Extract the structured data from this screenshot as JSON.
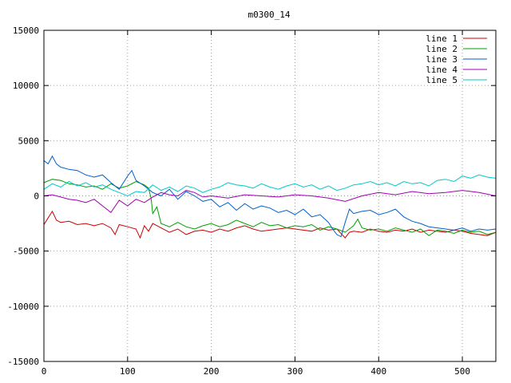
{
  "chart_data": {
    "type": "line",
    "title": "m0300_14",
    "xlabel": "",
    "ylabel": "",
    "xlim": [
      0,
      540
    ],
    "ylim": [
      -15000,
      15000
    ],
    "xticks": [
      0,
      100,
      200,
      300,
      400,
      500
    ],
    "yticks": [
      -15000,
      -10000,
      -5000,
      0,
      5000,
      10000,
      15000
    ],
    "grid": true,
    "legend_position": "top-right",
    "series": [
      {
        "name": "line 1",
        "color": "#cc0000",
        "x": [
          0,
          5,
          10,
          15,
          20,
          30,
          40,
          50,
          60,
          70,
          80,
          85,
          90,
          100,
          110,
          115,
          120,
          125,
          130,
          140,
          150,
          160,
          170,
          180,
          190,
          200,
          210,
          220,
          230,
          240,
          250,
          260,
          270,
          280,
          290,
          300,
          310,
          320,
          330,
          340,
          350,
          355,
          360,
          365,
          370,
          380,
          390,
          400,
          410,
          420,
          430,
          440,
          450,
          460,
          470,
          480,
          490,
          500,
          510,
          520,
          530,
          540
        ],
        "y": [
          -2600,
          -2000,
          -1400,
          -2200,
          -2400,
          -2300,
          -2600,
          -2500,
          -2700,
          -2500,
          -2900,
          -3500,
          -2600,
          -2800,
          -3000,
          -3800,
          -2700,
          -3200,
          -2500,
          -2900,
          -3300,
          -3000,
          -3500,
          -3200,
          -3100,
          -3300,
          -3000,
          -3200,
          -2900,
          -2700,
          -3000,
          -3200,
          -3100,
          -3000,
          -2900,
          -3000,
          -3100,
          -3200,
          -2900,
          -3100,
          -3000,
          -3400,
          -3800,
          -3300,
          -3200,
          -3300,
          -3000,
          -3200,
          -3300,
          -3100,
          -3200,
          -3000,
          -3300,
          -3100,
          -3200,
          -3300,
          -3100,
          -3200,
          -3400,
          -3500,
          -3600,
          -3300
        ]
      },
      {
        "name": "line 2",
        "color": "#00a000",
        "x": [
          0,
          10,
          20,
          30,
          40,
          50,
          60,
          70,
          80,
          90,
          100,
          110,
          120,
          125,
          128,
          130,
          135,
          140,
          150,
          160,
          170,
          180,
          190,
          200,
          210,
          220,
          230,
          240,
          250,
          260,
          270,
          280,
          290,
          300,
          310,
          320,
          330,
          340,
          350,
          360,
          370,
          375,
          380,
          385,
          390,
          400,
          410,
          420,
          430,
          440,
          450,
          460,
          470,
          480,
          490,
          500,
          510,
          520,
          530,
          540
        ],
        "y": [
          1200,
          1500,
          1400,
          1100,
          1000,
          800,
          900,
          600,
          1100,
          700,
          900,
          1300,
          1000,
          700,
          -200,
          -1600,
          -1000,
          -2500,
          -2800,
          -2400,
          -2800,
          -3000,
          -2700,
          -2500,
          -2800,
          -2600,
          -2200,
          -2500,
          -2800,
          -2400,
          -2700,
          -2600,
          -2900,
          -2700,
          -2800,
          -2600,
          -3100,
          -2800,
          -3000,
          -3300,
          -2700,
          -2100,
          -2900,
          -3000,
          -3100,
          -3000,
          -3200,
          -2900,
          -3100,
          -3300,
          -3000,
          -3600,
          -3100,
          -3200,
          -3400,
          -3100,
          -3300,
          -3200,
          -3500,
          -3300
        ]
      },
      {
        "name": "line 3",
        "color": "#0060cc",
        "x": [
          0,
          5,
          10,
          15,
          20,
          30,
          40,
          50,
          60,
          70,
          80,
          90,
          100,
          105,
          110,
          120,
          130,
          140,
          150,
          160,
          170,
          180,
          190,
          200,
          210,
          220,
          230,
          240,
          250,
          260,
          270,
          280,
          290,
          300,
          310,
          320,
          330,
          340,
          345,
          350,
          355,
          360,
          365,
          370,
          380,
          390,
          400,
          410,
          420,
          430,
          440,
          450,
          460,
          470,
          480,
          490,
          500,
          510,
          520,
          530,
          540
        ],
        "y": [
          3200,
          2900,
          3600,
          2900,
          2600,
          2400,
          2300,
          1900,
          1700,
          1900,
          1200,
          600,
          1800,
          2300,
          1400,
          900,
          300,
          0,
          600,
          -300,
          400,
          0,
          -500,
          -300,
          -1000,
          -600,
          -1300,
          -700,
          -1200,
          -900,
          -1100,
          -1500,
          -1300,
          -1700,
          -1200,
          -1900,
          -1700,
          -2400,
          -3000,
          -3500,
          -3700,
          -2400,
          -1200,
          -1600,
          -1400,
          -1300,
          -1700,
          -1500,
          -1200,
          -1900,
          -2300,
          -2500,
          -2800,
          -2900,
          -3000,
          -3100,
          -2900,
          -3200,
          -3000,
          -3100,
          -3000
        ]
      },
      {
        "name": "line 4",
        "color": "#a000b4",
        "x": [
          0,
          10,
          20,
          30,
          40,
          50,
          60,
          70,
          80,
          90,
          100,
          110,
          120,
          130,
          140,
          150,
          160,
          170,
          180,
          190,
          200,
          220,
          240,
          260,
          280,
          300,
          320,
          340,
          360,
          380,
          400,
          420,
          440,
          460,
          480,
          500,
          520,
          540
        ],
        "y": [
          0,
          100,
          -100,
          -300,
          -400,
          -600,
          -300,
          -900,
          -1500,
          -400,
          -900,
          -300,
          -600,
          -100,
          300,
          100,
          0,
          500,
          300,
          -100,
          0,
          -200,
          100,
          0,
          -100,
          100,
          0,
          -200,
          -500,
          0,
          300,
          100,
          400,
          200,
          300,
          500,
          300,
          0
        ]
      },
      {
        "name": "line 5",
        "color": "#00c8c8",
        "x": [
          0,
          10,
          20,
          30,
          40,
          50,
          60,
          70,
          80,
          90,
          100,
          110,
          120,
          130,
          140,
          150,
          160,
          170,
          180,
          190,
          200,
          210,
          220,
          230,
          240,
          250,
          260,
          270,
          280,
          290,
          300,
          310,
          320,
          330,
          340,
          350,
          360,
          370,
          380,
          390,
          400,
          410,
          420,
          430,
          440,
          450,
          460,
          470,
          480,
          490,
          500,
          510,
          520,
          530,
          540
        ],
        "y": [
          600,
          1100,
          800,
          1300,
          900,
          1200,
          800,
          1000,
          600,
          300,
          0,
          400,
          300,
          1000,
          500,
          800,
          400,
          900,
          700,
          300,
          600,
          800,
          1200,
          1000,
          900,
          700,
          1100,
          800,
          600,
          900,
          1100,
          800,
          1000,
          600,
          900,
          500,
          700,
          1000,
          1100,
          1300,
          1000,
          1200,
          900,
          1300,
          1100,
          1200,
          900,
          1400,
          1500,
          1300,
          1800,
          1600,
          1900,
          1700,
          1600
        ]
      }
    ]
  }
}
